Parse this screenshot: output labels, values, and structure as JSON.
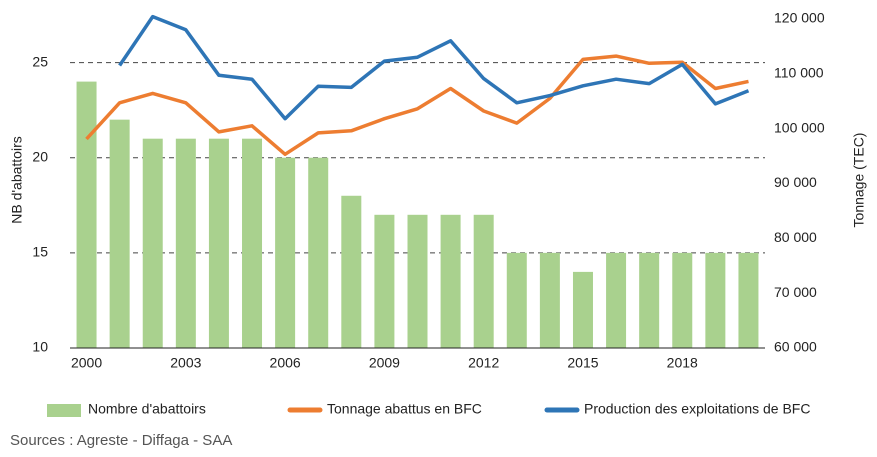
{
  "chart_data": {
    "type": "bar-line",
    "categories": [
      "2000",
      null,
      null,
      "2003",
      null,
      null,
      "2006",
      null,
      null,
      "2009",
      null,
      null,
      "2012",
      null,
      null,
      "2015",
      null,
      null,
      "2018",
      null,
      null
    ],
    "series": [
      {
        "name": "Nombre d'abattoirs",
        "type": "bar",
        "color": "#a9d18e",
        "values": [
          24,
          22,
          21,
          21,
          21,
          21,
          20,
          20,
          18,
          17,
          17,
          17,
          17,
          15,
          15,
          14,
          15,
          15,
          15,
          15,
          15
        ]
      },
      {
        "name": "Tonnage abattus en BFC",
        "type": "line",
        "axis": "y2",
        "color": "#ed7d31",
        "values": [
          98100,
          104700,
          106400,
          104700,
          99400,
          100500,
          95300,
          99200,
          99600,
          101800,
          103600,
          107300,
          103200,
          101000,
          105500,
          112600,
          113200,
          111900,
          112100,
          107300,
          108600
        ]
      },
      {
        "name": "Production des exploitations de BFC",
        "type": "line",
        "axis": "y2",
        "color": "#2e75b6",
        "values": [
          null,
          111500,
          120400,
          118000,
          109700,
          109000,
          101800,
          107700,
          107500,
          112300,
          113000,
          116000,
          109100,
          104700,
          106000,
          107800,
          109000,
          108200,
          111700,
          104500,
          106900
        ]
      }
    ],
    "ylabel": "NB d'abattoirs",
    "y2label": "Tonnage (TEC)",
    "ylim": [
      10,
      27.5
    ],
    "yticks": [
      10,
      15,
      20,
      25
    ],
    "y2lim": [
      60000,
      120700
    ],
    "y2ticks": [
      {
        "value": 60000,
        "label": "60 000"
      },
      {
        "value": 70000,
        "label": "70 000"
      },
      {
        "value": 80000,
        "label": "80 000"
      },
      {
        "value": 90000,
        "label": "90 000"
      },
      {
        "value": 100000,
        "label": "100 000"
      },
      {
        "value": 110000,
        "label": "110 000"
      },
      {
        "value": 120000,
        "label": "120 000"
      }
    ],
    "grid": true,
    "legend": "bottom",
    "source": "Sources : Agreste - Diffaga - SAA"
  }
}
